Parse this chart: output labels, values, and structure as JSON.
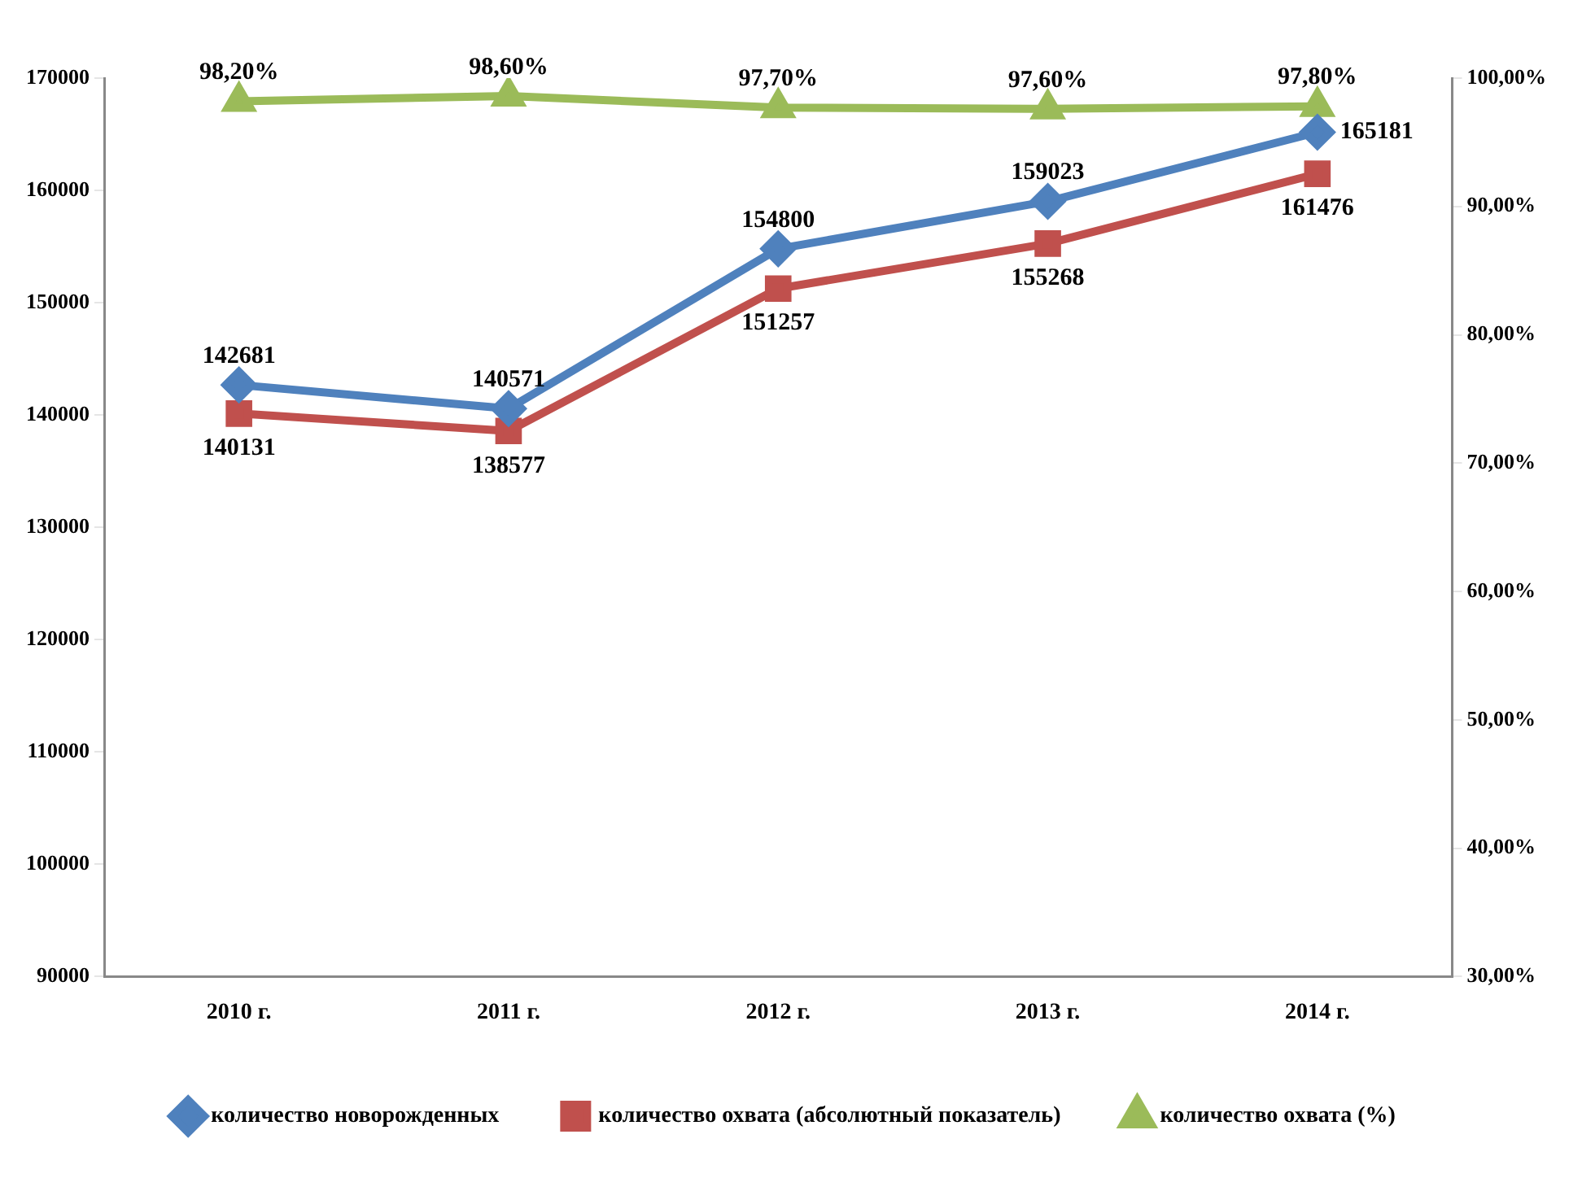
{
  "chart_data": {
    "type": "line",
    "categories": [
      "2010 г.",
      "2011 г.",
      "2012 г.",
      "2013 г.",
      "2014 г."
    ],
    "series": [
      {
        "name": "количество новорожденных",
        "color": "#4f81bd",
        "marker": "diamond",
        "values": [
          142681,
          140571,
          154800,
          159023,
          165181
        ],
        "value_labels": [
          "142681",
          "140571",
          "154800",
          "159023",
          "165181"
        ]
      },
      {
        "name": "количество охвата (абсолютный показатель)",
        "color": "#c0504d",
        "marker": "square",
        "values": [
          140131,
          138577,
          151257,
          155268,
          161476
        ],
        "value_labels": [
          "140131",
          "138577",
          "151257",
          "155268",
          "161476"
        ]
      },
      {
        "name": "количество охвата (%)",
        "color": "#9bbb59",
        "marker": "triangle",
        "axis": "y2",
        "values": [
          98.2,
          98.6,
          97.7,
          97.6,
          97.8
        ],
        "value_labels": [
          "98,20%",
          "98,60%",
          "97,70%",
          "97,60%",
          "97,80%"
        ]
      }
    ],
    "ylim": [
      90000,
      170000
    ],
    "yticks": [
      90000,
      100000,
      110000,
      120000,
      130000,
      140000,
      150000,
      160000,
      170000
    ],
    "y2lim": [
      30,
      100
    ],
    "y2ticks": [
      {
        "value": 30,
        "label": "30,00%"
      },
      {
        "value": 40,
        "label": "40,00%"
      },
      {
        "value": 50,
        "label": "50,00%"
      },
      {
        "value": 60,
        "label": "60,00%"
      },
      {
        "value": 70,
        "label": "70,00%"
      },
      {
        "value": 80,
        "label": "80,00%"
      },
      {
        "value": 90,
        "label": "90,00%"
      },
      {
        "value": 100,
        "label": "100,00%"
      }
    ],
    "grid": false,
    "legend": "bottom"
  }
}
